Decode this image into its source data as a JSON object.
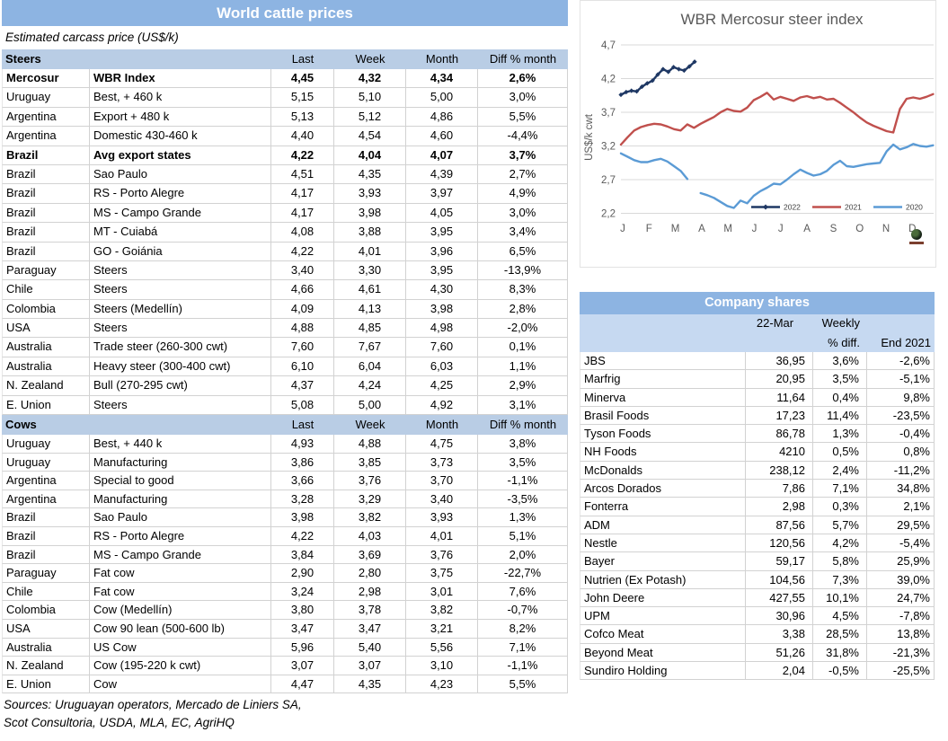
{
  "prices_panel": {
    "title": "World cattle prices",
    "subtitle": "Estimated carcass price (US$/k)",
    "columns": {
      "last": "Last",
      "week": "Week",
      "month": "Month",
      "diff": "Diff % month"
    },
    "steers": {
      "label": "Steers",
      "rows": [
        {
          "country": "Mercosur",
          "item": "WBR Index",
          "last": "4,45",
          "week": "4,32",
          "month": "4,34",
          "diff": "2,6%",
          "bold": true
        },
        {
          "country": "Uruguay",
          "item": "Best, + 460 k",
          "last": "5,15",
          "week": "5,10",
          "month": "5,00",
          "diff": "3,0%"
        },
        {
          "country": "Argentina",
          "item": "Export + 480 k",
          "last": "5,13",
          "week": "5,12",
          "month": "4,86",
          "diff": "5,5%"
        },
        {
          "country": "Argentina",
          "item": "Domestic 430-460 k",
          "last": "4,40",
          "week": "4,54",
          "month": "4,60",
          "diff": "-4,4%"
        },
        {
          "country": "Brazil",
          "item": "Avg export states",
          "last": "4,22",
          "week": "4,04",
          "month": "4,07",
          "diff": "3,7%",
          "bold": true
        },
        {
          "country": "Brazil",
          "item": "Sao Paulo",
          "last": "4,51",
          "week": "4,35",
          "month": "4,39",
          "diff": "2,7%"
        },
        {
          "country": "Brazil",
          "item": "RS - Porto Alegre",
          "last": "4,17",
          "week": "3,93",
          "month": "3,97",
          "diff": "4,9%"
        },
        {
          "country": "Brazil",
          "item": "MS - Campo Grande",
          "last": "4,17",
          "week": "3,98",
          "month": "4,05",
          "diff": "3,0%"
        },
        {
          "country": "Brazil",
          "item": "MT - Cuiabá",
          "last": "4,08",
          "week": "3,88",
          "month": "3,95",
          "diff": "3,4%"
        },
        {
          "country": "Brazil",
          "item": "GO - Goiánia",
          "last": "4,22",
          "week": "4,01",
          "month": "3,96",
          "diff": "6,5%"
        },
        {
          "country": "Paraguay",
          "item": "Steers",
          "last": "3,40",
          "week": "3,30",
          "month": "3,95",
          "diff": "-13,9%"
        },
        {
          "country": "Chile",
          "item": "Steers",
          "last": "4,66",
          "week": "4,61",
          "month": "4,30",
          "diff": "8,3%"
        },
        {
          "country": "Colombia",
          "item": "Steers (Medellín)",
          "last": "4,09",
          "week": "4,13",
          "month": "3,98",
          "diff": "2,8%"
        },
        {
          "country": "USA",
          "item": "Steers",
          "last": "4,88",
          "week": "4,85",
          "month": "4,98",
          "diff": "-2,0%"
        },
        {
          "country": "Australia",
          "item": "Trade steer (260-300 cwt)",
          "last": "7,60",
          "week": "7,67",
          "month": "7,60",
          "diff": "0,1%"
        },
        {
          "country": "Australia",
          "item": "Heavy steer (300-400 cwt)",
          "last": "6,10",
          "week": "6,04",
          "month": "6,03",
          "diff": "1,1%"
        },
        {
          "country": "N. Zealand",
          "item": "Bull (270-295 cwt)",
          "last": "4,37",
          "week": "4,24",
          "month": "4,25",
          "diff": "2,9%"
        },
        {
          "country": "E. Union",
          "item": "Steers",
          "last": "5,08",
          "week": "5,00",
          "month": "4,92",
          "diff": "3,1%"
        }
      ]
    },
    "cows": {
      "label": "Cows",
      "rows": [
        {
          "country": "Uruguay",
          "item": "Best, + 440 k",
          "last": "4,93",
          "week": "4,88",
          "month": "4,75",
          "diff": "3,8%"
        },
        {
          "country": "Uruguay",
          "item": "Manufacturing",
          "last": "3,86",
          "week": "3,85",
          "month": "3,73",
          "diff": "3,5%"
        },
        {
          "country": "Argentina",
          "item": "Special to good",
          "last": "3,66",
          "week": "3,76",
          "month": "3,70",
          "diff": "-1,1%"
        },
        {
          "country": "Argentina",
          "item": "Manufacturing",
          "last": "3,28",
          "week": "3,29",
          "month": "3,40",
          "diff": "-3,5%"
        },
        {
          "country": "Brazil",
          "item": "Sao Paulo",
          "last": "3,98",
          "week": "3,82",
          "month": "3,93",
          "diff": "1,3%"
        },
        {
          "country": "Brazil",
          "item": "RS - Porto Alegre",
          "last": "4,22",
          "week": "4,03",
          "month": "4,01",
          "diff": "5,1%"
        },
        {
          "country": "Brazil",
          "item": "MS - Campo Grande",
          "last": "3,84",
          "week": "3,69",
          "month": "3,76",
          "diff": "2,0%"
        },
        {
          "country": "Paraguay",
          "item": "Fat cow",
          "last": "2,90",
          "week": "2,80",
          "month": "3,75",
          "diff": "-22,7%"
        },
        {
          "country": "Chile",
          "item": "Fat cow",
          "last": "3,24",
          "week": "2,98",
          "month": "3,01",
          "diff": "7,6%"
        },
        {
          "country": "Colombia",
          "item": "Cow (Medellín)",
          "last": "3,80",
          "week": "3,78",
          "month": "3,82",
          "diff": "-0,7%"
        },
        {
          "country": "USA",
          "item": "Cow 90 lean (500-600 lb)",
          "last": "3,47",
          "week": "3,47",
          "month": "3,21",
          "diff": "8,2%"
        },
        {
          "country": "Australia",
          "item": "US Cow",
          "last": "5,96",
          "week": "5,40",
          "month": "5,56",
          "diff": "7,1%"
        },
        {
          "country": "N. Zealand",
          "item": "Cow (195-220 k cwt)",
          "last": "3,07",
          "week": "3,07",
          "month": "3,10",
          "diff": "-1,1%"
        },
        {
          "country": "E. Union",
          "item": "Cow",
          "last": "4,47",
          "week": "4,35",
          "month": "4,23",
          "diff": "5,5%"
        }
      ]
    },
    "sources_line1": "Sources: Uruguayan operators, Mercado de Liniers SA,",
    "sources_line2": "Scot Consultoria, USDA, MLA, EC, AgriHQ"
  },
  "chart_data": {
    "type": "line",
    "title": "WBR Mercosur steer index",
    "ylabel": "US$/k cwt",
    "ylim": [
      2.2,
      4.7
    ],
    "yticks": [
      4.7,
      4.2,
      3.7,
      3.2,
      2.7,
      2.2
    ],
    "x_labels": [
      "J",
      "F",
      "M",
      "A",
      "M",
      "J",
      "J",
      "A",
      "S",
      "O",
      "N",
      "D"
    ],
    "grid": true,
    "legend_position": "inside-bottom",
    "series": [
      {
        "name": "2022",
        "color": "#1F3864",
        "marker": "diamond",
        "x0": 0,
        "dx": 0.2,
        "values": [
          3.96,
          4.0,
          4.02,
          4.01,
          4.08,
          4.13,
          4.17,
          4.26,
          4.34,
          4.3,
          4.37,
          4.34,
          4.32,
          4.38,
          4.45
        ]
      },
      {
        "name": "2021",
        "color": "#C0504D",
        "x0": 0,
        "dx": 0.2523,
        "values": [
          3.22,
          3.33,
          3.43,
          3.48,
          3.51,
          3.53,
          3.52,
          3.49,
          3.45,
          3.43,
          3.52,
          3.47,
          3.53,
          3.58,
          3.63,
          3.7,
          3.75,
          3.72,
          3.71,
          3.77,
          3.88,
          3.93,
          3.99,
          3.89,
          3.93,
          3.9,
          3.87,
          3.92,
          3.94,
          3.91,
          3.93,
          3.89,
          3.9,
          3.84,
          3.77,
          3.7,
          3.62,
          3.55,
          3.5,
          3.46,
          3.42,
          3.4,
          3.75,
          3.9,
          3.92,
          3.9,
          3.93,
          3.97
        ]
      },
      {
        "name": "2020",
        "color": "#5B9BD5",
        "x0": 0,
        "dx": 0.2523,
        "values": [
          3.09,
          3.04,
          2.99,
          2.96,
          2.96,
          2.99,
          3.01,
          2.97,
          2.9,
          2.83,
          2.71,
          null,
          2.5,
          2.47,
          2.43,
          2.37,
          2.31,
          2.28,
          2.39,
          2.35,
          2.46,
          2.53,
          2.58,
          2.64,
          2.63,
          2.7,
          2.78,
          2.85,
          2.8,
          2.76,
          2.78,
          2.83,
          2.92,
          2.98,
          2.9,
          2.89,
          2.91,
          2.93,
          2.94,
          2.95,
          3.12,
          3.22,
          3.15,
          3.18,
          3.23,
          3.2,
          3.19,
          3.21
        ]
      }
    ]
  },
  "company_panel": {
    "title": "Company shares",
    "col_headers": {
      "date": "22-Mar",
      "weekly_top": "Weekly",
      "weekly_bottom": "% diff.",
      "end": "End 2021"
    },
    "rows": [
      {
        "name": "JBS",
        "price": "36,95",
        "weekly": "3,6%",
        "end": "-2,6%"
      },
      {
        "name": "Marfrig",
        "price": "20,95",
        "weekly": "3,5%",
        "end": "-5,1%"
      },
      {
        "name": "Minerva",
        "price": "11,64",
        "weekly": "0,4%",
        "end": "9,8%"
      },
      {
        "name": "Brasil Foods",
        "price": "17,23",
        "weekly": "11,4%",
        "end": "-23,5%"
      },
      {
        "name": "Tyson Foods",
        "price": "86,78",
        "weekly": "1,3%",
        "end": "-0,4%"
      },
      {
        "name": "NH Foods",
        "price": "4210",
        "weekly": "0,5%",
        "end": "0,8%"
      },
      {
        "name": "McDonalds",
        "price": "238,12",
        "weekly": "2,4%",
        "end": "-11,2%"
      },
      {
        "name": "Arcos Dorados",
        "price": "7,86",
        "weekly": "7,1%",
        "end": "34,8%"
      },
      {
        "name": "Fonterra",
        "price": "2,98",
        "weekly": "0,3%",
        "end": "2,1%"
      },
      {
        "name": "ADM",
        "price": "87,56",
        "weekly": "5,7%",
        "end": "29,5%"
      },
      {
        "name": "Nestle",
        "price": "120,56",
        "weekly": "4,2%",
        "end": "-5,4%"
      },
      {
        "name": "Bayer",
        "price": "59,17",
        "weekly": "5,8%",
        "end": "25,9%"
      },
      {
        "name": "Nutrien (Ex Potash)",
        "price": "104,56",
        "weekly": "7,3%",
        "end": "39,0%"
      },
      {
        "name": "John Deere",
        "price": "427,55",
        "weekly": "10,1%",
        "end": "24,7%"
      },
      {
        "name": "UPM",
        "price": "30,96",
        "weekly": "4,5%",
        "end": "-7,8%"
      },
      {
        "name": "Cofco Meat",
        "price": "3,38",
        "weekly": "28,5%",
        "end": "13,8%"
      },
      {
        "name": "Beyond Meat",
        "price": "51,26",
        "weekly": "31,8%",
        "end": "-21,3%"
      },
      {
        "name": "Sundiro Holding",
        "price": "2,04",
        "weekly": "-0,5%",
        "end": "-25,5%"
      }
    ]
  },
  "colors": {
    "header_blue": "#8DB4E2",
    "band_blue": "#B9CDE5",
    "subhead_blue": "#C6D9F1",
    "series_2022": "#1F3864",
    "series_2021": "#C0504D",
    "series_2020": "#5B9BD5",
    "gridline": "#D9D9D9",
    "axis_text": "#595959"
  }
}
